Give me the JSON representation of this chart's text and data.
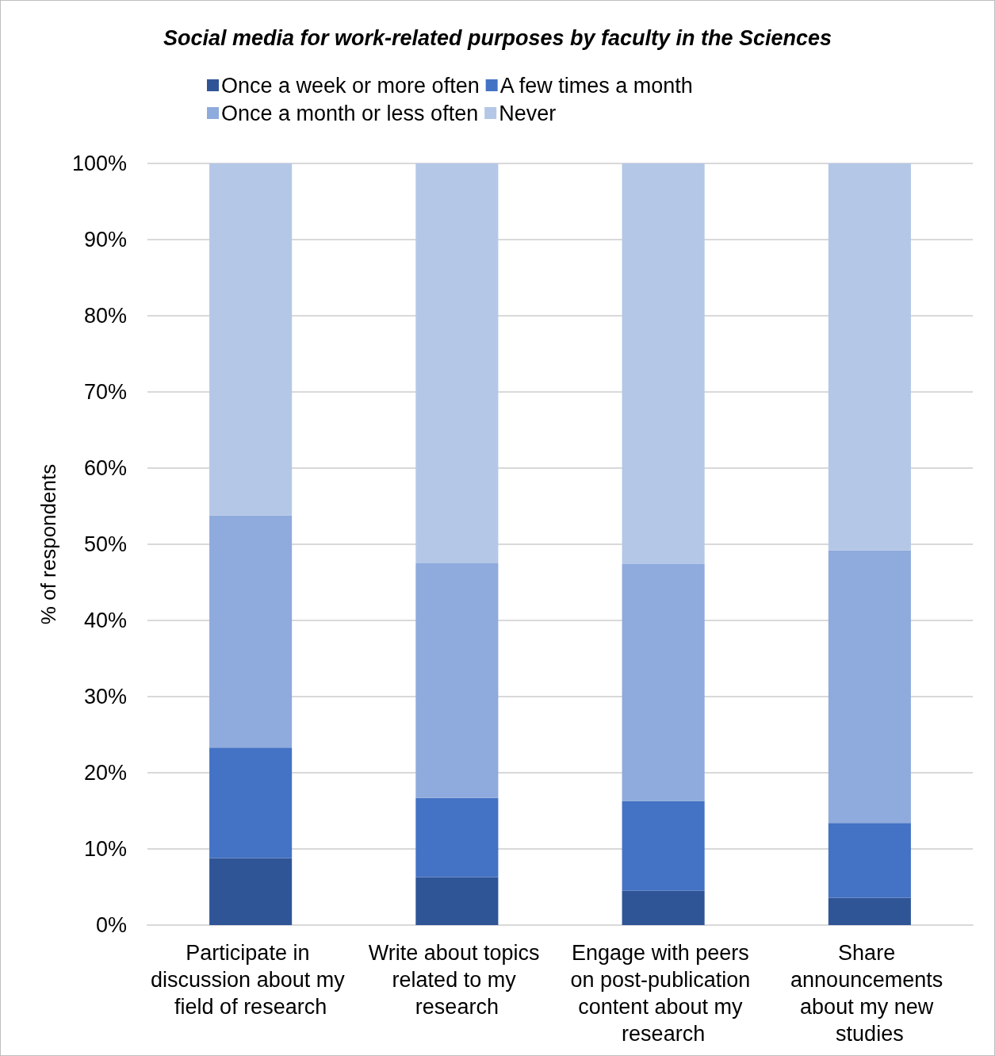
{
  "chart_data": {
    "type": "bar",
    "title": "Social media for work-related purposes by faculty in the Sciences",
    "ylabel": "% of respondents",
    "categories": [
      "Participate in discussion about my field of research",
      "Write about topics related to my research",
      "Engage with peers on post-publication content about my research",
      "Share announcements about my new studies"
    ],
    "stacked": true,
    "series": [
      {
        "name": "Once a week or more often",
        "color": "#2f5597",
        "values": [
          8.8,
          6.3,
          4.5,
          3.6
        ]
      },
      {
        "name": "A few times a month",
        "color": "#4472c4",
        "values": [
          14.5,
          10.4,
          11.8,
          9.8
        ]
      },
      {
        "name": "Once a month or less often",
        "color": "#8faadc",
        "values": [
          30.5,
          30.8,
          31.1,
          35.8
        ]
      },
      {
        "name": "Never",
        "color": "#b4c7e7",
        "values": [
          46.2,
          52.5,
          52.6,
          50.8
        ]
      }
    ],
    "ylim": [
      0,
      100
    ],
    "yticks": [
      {
        "value": 0,
        "label": "0%"
      },
      {
        "value": 10,
        "label": "10%"
      },
      {
        "value": 20,
        "label": "20%"
      },
      {
        "value": 30,
        "label": "30%"
      },
      {
        "value": 40,
        "label": "40%"
      },
      {
        "value": 50,
        "label": "50%"
      },
      {
        "value": 60,
        "label": "60%"
      },
      {
        "value": 70,
        "label": "70%"
      },
      {
        "value": 80,
        "label": "80%"
      },
      {
        "value": 90,
        "label": "90%"
      },
      {
        "value": 100,
        "label": "100%"
      }
    ],
    "grid": "y",
    "legend": "top"
  }
}
